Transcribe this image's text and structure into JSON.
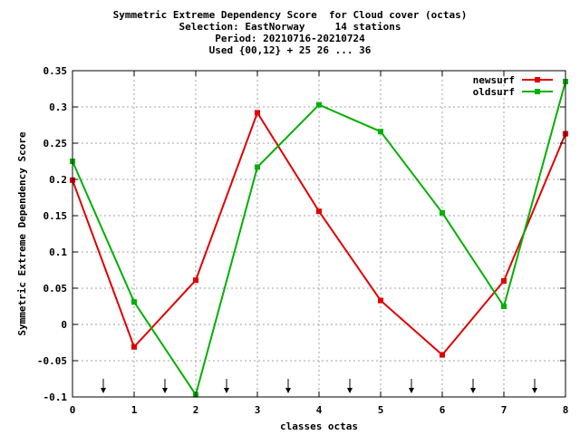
{
  "chart_data": {
    "type": "line",
    "title_lines": [
      "Symmetric Extreme Dependency Score  for Cloud cover (octas)",
      "Selection: EastNorway     14 stations",
      "Period: 20210716-20210724",
      "Used {00,12} + 25 26 ... 36"
    ],
    "xlabel": "classes octas",
    "ylabel": "Symmetric Extreme Dependency Score",
    "xlim": [
      0,
      8
    ],
    "ylim": [
      -0.1,
      0.35
    ],
    "xticks": [
      0,
      1,
      2,
      3,
      4,
      5,
      6,
      7,
      8
    ],
    "xtick_labels": [
      "0",
      "1",
      "2",
      "3",
      "4",
      "5",
      "6",
      "7",
      "8"
    ],
    "yticks": [
      -0.1,
      -0.05,
      0,
      0.05,
      0.1,
      0.15,
      0.2,
      0.25,
      0.3,
      0.35
    ],
    "ytick_labels": [
      "-0.1",
      "-0.05",
      "0",
      "0.05",
      "0.1",
      "0.15",
      "0.2",
      "0.25",
      "0.3",
      "0.35"
    ],
    "grid": true,
    "legend_position": "top-right",
    "arrow_markers_x": [
      0.5,
      1.5,
      2.5,
      3.5,
      4.5,
      5.5,
      6.5,
      7.5
    ],
    "series": [
      {
        "name": "newsurf",
        "color": "#e00000",
        "x": [
          0,
          1,
          2,
          3,
          4,
          5,
          6,
          7,
          8
        ],
        "values": [
          0.199,
          -0.031,
          0.061,
          0.292,
          0.156,
          0.033,
          -0.042,
          0.06,
          0.263
        ]
      },
      {
        "name": "oldsurf",
        "color": "#00b000",
        "x": [
          0,
          1,
          2,
          3,
          4,
          5,
          6,
          7,
          8
        ],
        "values": [
          0.225,
          0.031,
          -0.097,
          0.217,
          0.303,
          0.266,
          0.154,
          0.025,
          0.335
        ]
      }
    ]
  }
}
